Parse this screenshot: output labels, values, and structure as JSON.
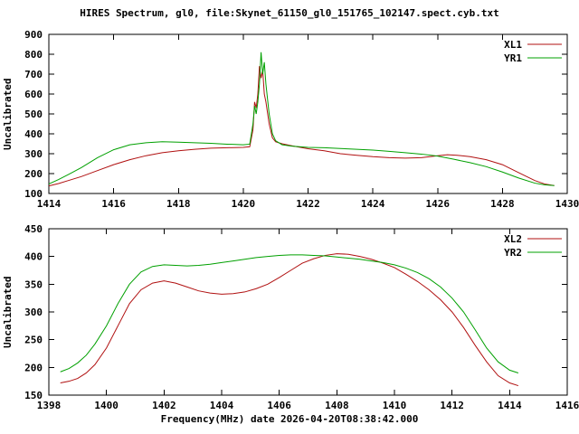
{
  "chart_data": [
    {
      "type": "line",
      "title": "HIRES Spectrum, gl0, file:Skynet_61150_gl0_151765_102147.spect.cyb.txt",
      "ylabel": "Uncalibrated",
      "xlim": [
        1414,
        1430
      ],
      "ylim": [
        100,
        900
      ],
      "xticks": [
        1414,
        1416,
        1418,
        1420,
        1422,
        1424,
        1426,
        1428,
        1430
      ],
      "yticks": [
        100,
        200,
        300,
        400,
        500,
        600,
        700,
        800,
        900
      ],
      "legend_position": "top-right",
      "grid": false,
      "series": [
        {
          "name": "XL1",
          "color": "#b01010",
          "points": [
            [
              1414.0,
              138
            ],
            [
              1414.3,
              150
            ],
            [
              1414.6,
              165
            ],
            [
              1415.0,
              185
            ],
            [
              1415.5,
              215
            ],
            [
              1416.0,
              245
            ],
            [
              1416.5,
              270
            ],
            [
              1417.0,
              290
            ],
            [
              1417.5,
              305
            ],
            [
              1418.0,
              315
            ],
            [
              1418.5,
              322
            ],
            [
              1419.0,
              328
            ],
            [
              1419.5,
              330
            ],
            [
              1420.0,
              332
            ],
            [
              1420.2,
              335
            ],
            [
              1420.3,
              420
            ],
            [
              1420.35,
              560
            ],
            [
              1420.4,
              530
            ],
            [
              1420.45,
              600
            ],
            [
              1420.5,
              740
            ],
            [
              1420.55,
              680
            ],
            [
              1420.6,
              720
            ],
            [
              1420.65,
              600
            ],
            [
              1420.7,
              560
            ],
            [
              1420.8,
              450
            ],
            [
              1420.9,
              380
            ],
            [
              1421.0,
              360
            ],
            [
              1421.2,
              350
            ],
            [
              1421.5,
              340
            ],
            [
              1422.0,
              325
            ],
            [
              1422.5,
              315
            ],
            [
              1423.0,
              300
            ],
            [
              1423.5,
              292
            ],
            [
              1424.0,
              285
            ],
            [
              1424.5,
              280
            ],
            [
              1425.0,
              278
            ],
            [
              1425.5,
              280
            ],
            [
              1426.0,
              290
            ],
            [
              1426.3,
              295
            ],
            [
              1426.6,
              292
            ],
            [
              1427.0,
              285
            ],
            [
              1427.5,
              270
            ],
            [
              1428.0,
              245
            ],
            [
              1428.5,
              205
            ],
            [
              1429.0,
              165
            ],
            [
              1429.3,
              148
            ],
            [
              1429.6,
              140
            ]
          ]
        },
        {
          "name": "YR1",
          "color": "#00a000",
          "points": [
            [
              1414.0,
              148
            ],
            [
              1414.3,
              170
            ],
            [
              1414.6,
              195
            ],
            [
              1415.0,
              230
            ],
            [
              1415.5,
              280
            ],
            [
              1416.0,
              320
            ],
            [
              1416.5,
              345
            ],
            [
              1417.0,
              355
            ],
            [
              1417.5,
              360
            ],
            [
              1418.0,
              358
            ],
            [
              1418.5,
              355
            ],
            [
              1419.0,
              352
            ],
            [
              1419.5,
              348
            ],
            [
              1420.0,
              345
            ],
            [
              1420.2,
              348
            ],
            [
              1420.3,
              450
            ],
            [
              1420.35,
              540
            ],
            [
              1420.4,
              500
            ],
            [
              1420.45,
              560
            ],
            [
              1420.5,
              650
            ],
            [
              1420.55,
              810
            ],
            [
              1420.6,
              700
            ],
            [
              1420.65,
              760
            ],
            [
              1420.7,
              650
            ],
            [
              1420.8,
              500
            ],
            [
              1420.9,
              400
            ],
            [
              1421.0,
              365
            ],
            [
              1421.2,
              345
            ],
            [
              1421.5,
              338
            ],
            [
              1422.0,
              332
            ],
            [
              1422.5,
              330
            ],
            [
              1423.0,
              326
            ],
            [
              1423.5,
              322
            ],
            [
              1424.0,
              318
            ],
            [
              1424.5,
              312
            ],
            [
              1425.0,
              305
            ],
            [
              1425.5,
              298
            ],
            [
              1426.0,
              288
            ],
            [
              1426.5,
              272
            ],
            [
              1427.0,
              255
            ],
            [
              1427.5,
              235
            ],
            [
              1428.0,
              208
            ],
            [
              1428.5,
              178
            ],
            [
              1429.0,
              152
            ],
            [
              1429.3,
              144
            ],
            [
              1429.6,
              140
            ]
          ]
        }
      ]
    },
    {
      "type": "line",
      "xlabel": "Frequency(MHz) date 2026-04-20T08:38:42.000",
      "ylabel": "Uncalibrated",
      "xlim": [
        1398,
        1416
      ],
      "ylim": [
        150,
        450
      ],
      "xticks": [
        1398,
        1400,
        1402,
        1404,
        1406,
        1408,
        1410,
        1412,
        1414,
        1416
      ],
      "yticks": [
        150,
        200,
        250,
        300,
        350,
        400,
        450
      ],
      "legend_position": "top-right",
      "grid": false,
      "series": [
        {
          "name": "XL2",
          "color": "#b01010",
          "points": [
            [
              1398.4,
              172
            ],
            [
              1398.7,
              175
            ],
            [
              1399.0,
              180
            ],
            [
              1399.3,
              190
            ],
            [
              1399.6,
              205
            ],
            [
              1400.0,
              235
            ],
            [
              1400.4,
              275
            ],
            [
              1400.8,
              315
            ],
            [
              1401.2,
              340
            ],
            [
              1401.6,
              352
            ],
            [
              1402.0,
              356
            ],
            [
              1402.4,
              352
            ],
            [
              1402.8,
              345
            ],
            [
              1403.2,
              338
            ],
            [
              1403.6,
              334
            ],
            [
              1404.0,
              332
            ],
            [
              1404.4,
              333
            ],
            [
              1404.8,
              336
            ],
            [
              1405.2,
              342
            ],
            [
              1405.6,
              350
            ],
            [
              1406.0,
              362
            ],
            [
              1406.4,
              375
            ],
            [
              1406.8,
              388
            ],
            [
              1407.2,
              396
            ],
            [
              1407.6,
              402
            ],
            [
              1408.0,
              405
            ],
            [
              1408.4,
              404
            ],
            [
              1408.8,
              400
            ],
            [
              1409.2,
              395
            ],
            [
              1409.6,
              388
            ],
            [
              1410.0,
              380
            ],
            [
              1410.4,
              368
            ],
            [
              1410.8,
              355
            ],
            [
              1411.2,
              340
            ],
            [
              1411.6,
              322
            ],
            [
              1412.0,
              300
            ],
            [
              1412.4,
              272
            ],
            [
              1412.8,
              240
            ],
            [
              1413.2,
              210
            ],
            [
              1413.6,
              185
            ],
            [
              1414.0,
              172
            ],
            [
              1414.3,
              167
            ]
          ]
        },
        {
          "name": "YR2",
          "color": "#00a000",
          "points": [
            [
              1398.4,
              192
            ],
            [
              1398.7,
              198
            ],
            [
              1399.0,
              208
            ],
            [
              1399.3,
              222
            ],
            [
              1399.6,
              242
            ],
            [
              1400.0,
              275
            ],
            [
              1400.4,
              315
            ],
            [
              1400.8,
              350
            ],
            [
              1401.2,
              372
            ],
            [
              1401.6,
              382
            ],
            [
              1402.0,
              385
            ],
            [
              1402.4,
              384
            ],
            [
              1402.8,
              383
            ],
            [
              1403.2,
              384
            ],
            [
              1403.6,
              386
            ],
            [
              1404.0,
              389
            ],
            [
              1404.4,
              392
            ],
            [
              1404.8,
              395
            ],
            [
              1405.2,
              398
            ],
            [
              1405.6,
              400
            ],
            [
              1406.0,
              402
            ],
            [
              1406.4,
              403
            ],
            [
              1406.8,
              403
            ],
            [
              1407.2,
              402
            ],
            [
              1407.6,
              401
            ],
            [
              1408.0,
              399
            ],
            [
              1408.4,
              397
            ],
            [
              1408.8,
              395
            ],
            [
              1409.2,
              392
            ],
            [
              1409.6,
              389
            ],
            [
              1410.0,
              385
            ],
            [
              1410.4,
              379
            ],
            [
              1410.8,
              371
            ],
            [
              1411.2,
              360
            ],
            [
              1411.6,
              345
            ],
            [
              1412.0,
              325
            ],
            [
              1412.4,
              300
            ],
            [
              1412.8,
              268
            ],
            [
              1413.2,
              235
            ],
            [
              1413.6,
              210
            ],
            [
              1414.0,
              195
            ],
            [
              1414.3,
              190
            ]
          ]
        }
      ]
    }
  ]
}
